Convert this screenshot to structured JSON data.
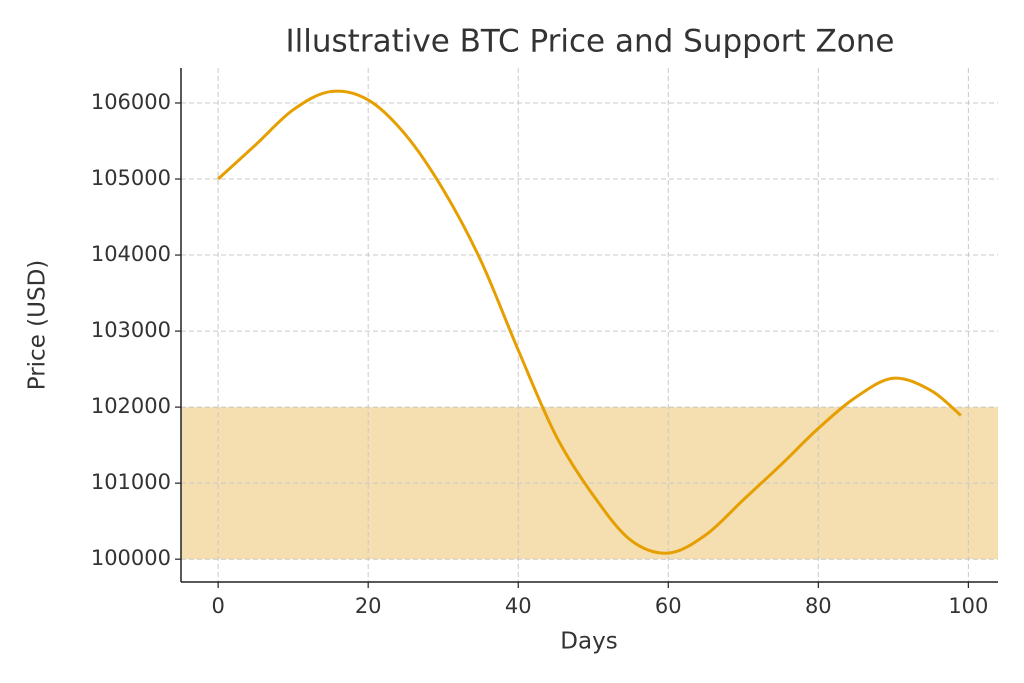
{
  "chart_data": {
    "type": "line",
    "title": "Illustrative BTC Price and Support Zone",
    "x_label": "Days",
    "y_label": "Price (USD)",
    "x": [
      0,
      5,
      10,
      15,
      20,
      25,
      30,
      35,
      40,
      45,
      50,
      55,
      60,
      65,
      70,
      75,
      80,
      85,
      90,
      95,
      99
    ],
    "series": [
      {
        "color": "#e69f00",
        "values": [
          105000,
          105450,
          105910,
          106150,
          106040,
          105580,
          104860,
          103930,
          102750,
          101630,
          100840,
          100250,
          100080,
          100320,
          100780,
          101240,
          101720,
          102130,
          102380,
          102220,
          101890
        ]
      }
    ],
    "band": {
      "y0": 100000,
      "y1": 102000,
      "color": "#f5deb0"
    },
    "xlim": [
      -4.95,
      103.95
    ],
    "xticks": [
      0,
      20,
      40,
      60,
      80,
      100
    ],
    "ylim": [
      99700,
      106460
    ],
    "yticks": [
      100000,
      101000,
      102000,
      103000,
      104000,
      105000,
      106000
    ],
    "grid": true
  }
}
